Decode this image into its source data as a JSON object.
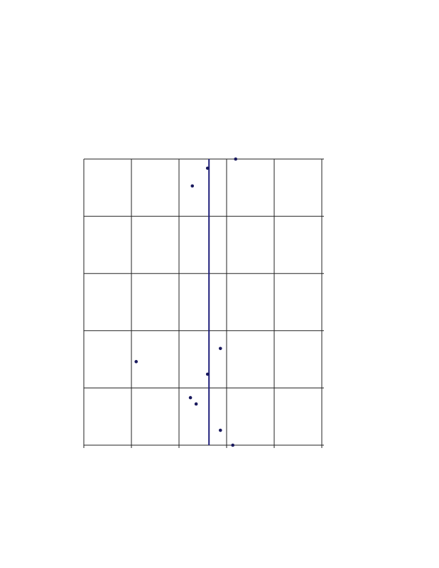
{
  "chart_data": {
    "type": "scatter",
    "title": "",
    "xlabel": "",
    "ylabel": "",
    "xlim": [
      0,
      5
    ],
    "ylim": [
      0,
      5
    ],
    "grid": true,
    "x_gridlines": [
      0,
      1,
      2,
      3,
      4,
      5
    ],
    "y_gridlines": [
      0,
      1,
      2,
      3,
      4,
      5
    ],
    "points": [
      {
        "x": 3.19,
        "y": 5.0
      },
      {
        "x": 2.6,
        "y": 4.84
      },
      {
        "x": 2.28,
        "y": 4.53
      },
      {
        "x": 2.87,
        "y": 1.69
      },
      {
        "x": 1.1,
        "y": 1.46
      },
      {
        "x": 2.6,
        "y": 1.24
      },
      {
        "x": 2.24,
        "y": 0.83
      },
      {
        "x": 2.36,
        "y": 0.72
      },
      {
        "x": 2.87,
        "y": 0.26
      },
      {
        "x": 3.13,
        "y": 0.0
      }
    ],
    "vertical_line_x": 2.63,
    "colors": {
      "points": "#1a1a5e",
      "line": "#1f1f7a",
      "grid": "#222222"
    }
  }
}
